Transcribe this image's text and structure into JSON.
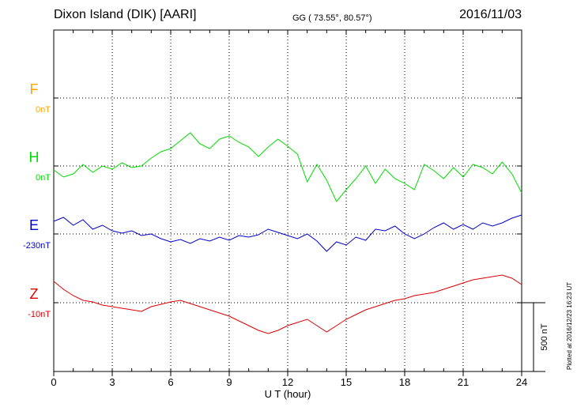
{
  "header": {
    "title": "Dixon Island (DIK)  [AARI]",
    "coords": "GG ( 73.55°,  80.57°)",
    "date": "2016/11/03",
    "plotted": "Plotted at 2016/12/23 16:23 UT"
  },
  "chart_data": {
    "type": "line",
    "xlabel": "U T (hour)",
    "xlim": [
      0,
      24
    ],
    "xticks": [
      0,
      3,
      6,
      9,
      12,
      15,
      18,
      21,
      24
    ],
    "scale_bar": "500 nT",
    "series": [
      {
        "name": "F",
        "baseline": "0nT",
        "color": "#FFA500",
        "points": []
      },
      {
        "name": "H",
        "baseline": "0nT",
        "color": "#00DD00",
        "points": [
          [
            0,
            215
          ],
          [
            0.5,
            224
          ],
          [
            1,
            220
          ],
          [
            1.5,
            208
          ],
          [
            2,
            218
          ],
          [
            2.5,
            210
          ],
          [
            3,
            214
          ],
          [
            3.5,
            206
          ],
          [
            4,
            212
          ],
          [
            4.5,
            210
          ],
          [
            5,
            200
          ],
          [
            5.5,
            192
          ],
          [
            6,
            188
          ],
          [
            6.5,
            178
          ],
          [
            7,
            168
          ],
          [
            7.5,
            182
          ],
          [
            8,
            188
          ],
          [
            8.5,
            176
          ],
          [
            9,
            172
          ],
          [
            9.5,
            180
          ],
          [
            10,
            186
          ],
          [
            10.5,
            198
          ],
          [
            11,
            186
          ],
          [
            11.5,
            176
          ],
          [
            12,
            185
          ],
          [
            12.5,
            195
          ],
          [
            13,
            230
          ],
          [
            13.5,
            208
          ],
          [
            14,
            228
          ],
          [
            14.5,
            255
          ],
          [
            15,
            240
          ],
          [
            15.5,
            226
          ],
          [
            16,
            210
          ],
          [
            16.5,
            232
          ],
          [
            17,
            214
          ],
          [
            17.5,
            226
          ],
          [
            18,
            232
          ],
          [
            18.5,
            240
          ],
          [
            19,
            208
          ],
          [
            19.5,
            216
          ],
          [
            20,
            226
          ],
          [
            20.5,
            212
          ],
          [
            21,
            224
          ],
          [
            21.5,
            208
          ],
          [
            22,
            212
          ],
          [
            22.5,
            220
          ],
          [
            23,
            205
          ],
          [
            23.5,
            220
          ],
          [
            24,
            244
          ]
        ]
      },
      {
        "name": "E",
        "baseline": "-230nT",
        "color": "#0000CC",
        "points": [
          [
            0,
            280
          ],
          [
            0.5,
            275
          ],
          [
            1,
            285
          ],
          [
            1.5,
            278
          ],
          [
            2,
            290
          ],
          [
            2.5,
            285
          ],
          [
            3,
            292
          ],
          [
            3.5,
            295
          ],
          [
            4,
            292
          ],
          [
            4.5,
            298
          ],
          [
            5,
            296
          ],
          [
            5.5,
            302
          ],
          [
            6,
            306
          ],
          [
            6.5,
            303
          ],
          [
            7,
            308
          ],
          [
            7.5,
            302
          ],
          [
            8,
            305
          ],
          [
            8.5,
            300
          ],
          [
            9,
            304
          ],
          [
            9.5,
            298
          ],
          [
            10,
            300
          ],
          [
            10.5,
            297
          ],
          [
            11,
            290
          ],
          [
            11.5,
            294
          ],
          [
            12,
            298
          ],
          [
            12.5,
            302
          ],
          [
            13,
            296
          ],
          [
            13.5,
            305
          ],
          [
            14,
            318
          ],
          [
            14.5,
            306
          ],
          [
            15,
            310
          ],
          [
            15.5,
            300
          ],
          [
            16,
            304
          ],
          [
            16.5,
            290
          ],
          [
            17,
            292
          ],
          [
            17.5,
            286
          ],
          [
            18,
            296
          ],
          [
            18.5,
            302
          ],
          [
            19,
            296
          ],
          [
            19.5,
            288
          ],
          [
            20,
            282
          ],
          [
            20.5,
            290
          ],
          [
            21,
            284
          ],
          [
            21.5,
            290
          ],
          [
            22,
            282
          ],
          [
            22.5,
            286
          ],
          [
            23,
            282
          ],
          [
            23.5,
            276
          ],
          [
            24,
            272
          ]
        ]
      },
      {
        "name": "Z",
        "baseline": "-10nT",
        "color": "#DD0000",
        "points": [
          [
            0,
            356
          ],
          [
            0.5,
            366
          ],
          [
            1,
            374
          ],
          [
            1.5,
            380
          ],
          [
            2,
            382
          ],
          [
            2.5,
            386
          ],
          [
            3,
            388
          ],
          [
            3.5,
            390
          ],
          [
            4,
            392
          ],
          [
            4.5,
            394
          ],
          [
            5,
            388
          ],
          [
            5.5,
            385
          ],
          [
            6,
            382
          ],
          [
            6.5,
            380
          ],
          [
            7,
            384
          ],
          [
            7.5,
            388
          ],
          [
            8,
            392
          ],
          [
            8.5,
            396
          ],
          [
            9,
            400
          ],
          [
            9.5,
            406
          ],
          [
            10,
            412
          ],
          [
            10.5,
            418
          ],
          [
            11,
            422
          ],
          [
            11.5,
            418
          ],
          [
            12,
            412
          ],
          [
            12.5,
            408
          ],
          [
            13,
            404
          ],
          [
            13.5,
            412
          ],
          [
            14,
            420
          ],
          [
            14.5,
            412
          ],
          [
            15,
            404
          ],
          [
            15.5,
            398
          ],
          [
            16,
            392
          ],
          [
            16.5,
            388
          ],
          [
            17,
            384
          ],
          [
            17.5,
            380
          ],
          [
            18,
            378
          ],
          [
            18.5,
            374
          ],
          [
            19,
            372
          ],
          [
            19.5,
            370
          ],
          [
            20,
            366
          ],
          [
            20.5,
            362
          ],
          [
            21,
            358
          ],
          [
            21.5,
            354
          ],
          [
            22,
            352
          ],
          [
            22.5,
            350
          ],
          [
            23,
            348
          ],
          [
            23.5,
            352
          ],
          [
            24,
            360
          ]
        ]
      }
    ]
  }
}
